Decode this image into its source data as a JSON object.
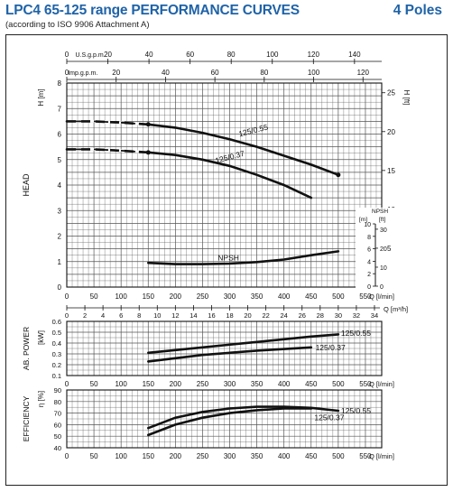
{
  "header": {
    "title": "LPC4 65-125 range PERFORMANCE CURVES",
    "subtitle": "(according to ISO 9906 Attachment A)",
    "poles": "4 Poles"
  },
  "colors": {
    "title": "#1f63a8",
    "grid": "#555555",
    "curve": "#111111"
  },
  "chart_data": [
    {
      "type": "line",
      "name": "head",
      "ylabel": "HEAD",
      "ylabel_unit_left": "H [m]",
      "ylabel_unit_right": "H [ft]",
      "xlim": [
        0,
        580
      ],
      "ylim": [
        0,
        8
      ],
      "yticks_left": [
        "0",
        "1",
        "2",
        "3",
        "4",
        "5",
        "6",
        "7",
        "8"
      ],
      "yticks_right": [
        "0",
        "5",
        "10",
        "15",
        "20",
        "25"
      ],
      "top_axis_usgpm": {
        "label": "U.S.g.p.m.",
        "ticks": [
          "0",
          "20",
          "40",
          "60",
          "80",
          "100",
          "120",
          "140"
        ]
      },
      "top_axis_impgpm": {
        "label": "Imp.g.p.m.",
        "ticks": [
          "0",
          "20",
          "40",
          "60",
          "80",
          "100",
          "120"
        ]
      },
      "series": [
        {
          "name": "125/0.55",
          "x": [
            0,
            50,
            100,
            150,
            200,
            250,
            300,
            350,
            400,
            450,
            500
          ],
          "y": [
            6.5,
            6.5,
            6.45,
            6.38,
            6.25,
            6.05,
            5.8,
            5.5,
            5.15,
            4.8,
            4.4
          ]
        },
        {
          "name": "125/0.37",
          "x": [
            0,
            50,
            100,
            150,
            200,
            250,
            300,
            350,
            400,
            450
          ],
          "y": [
            5.4,
            5.4,
            5.35,
            5.28,
            5.18,
            5.0,
            4.75,
            4.4,
            4.0,
            3.5
          ]
        },
        {
          "name": "NPSH",
          "x": [
            150,
            200,
            250,
            300,
            350,
            400,
            450,
            500
          ],
          "y": [
            0.95,
            0.9,
            0.9,
            0.92,
            0.98,
            1.08,
            1.25,
            1.4
          ]
        }
      ],
      "npsh_axis": {
        "label": "NPSH",
        "unit_m": "[m]",
        "unit_ft": "[ft]",
        "m_ticks": [
          "0",
          "2",
          "4",
          "6",
          "8",
          "10"
        ],
        "ft_ticks": [
          "0",
          "10",
          "20",
          "30"
        ],
        "right_ticks": [
          "5"
        ]
      }
    },
    {
      "type": "line",
      "name": "absorbed-power",
      "ylabel": "AB. POWER",
      "ylabel_unit": "[kW]",
      "xlim": [
        0,
        580
      ],
      "ylim": [
        0.1,
        0.6
      ],
      "yticks": [
        "0.1",
        "0.2",
        "0.3",
        "0.4",
        "0.5",
        "0.6"
      ],
      "series": [
        {
          "name": "125/0.55",
          "x": [
            150,
            250,
            350,
            450,
            500
          ],
          "y": [
            0.31,
            0.36,
            0.41,
            0.46,
            0.48
          ]
        },
        {
          "name": "125/0.37",
          "x": [
            150,
            250,
            350,
            450
          ],
          "y": [
            0.23,
            0.29,
            0.33,
            0.36
          ]
        }
      ]
    },
    {
      "type": "line",
      "name": "efficiency",
      "ylabel": "EFFICIENCY",
      "ylabel_unit": "η [%]",
      "xlim": [
        0,
        580
      ],
      "ylim": [
        40,
        90
      ],
      "yticks": [
        "40",
        "50",
        "60",
        "70",
        "80",
        "90"
      ],
      "series": [
        {
          "name": "125/0.55",
          "x": [
            150,
            200,
            250,
            300,
            350,
            400,
            450,
            500
          ],
          "y": [
            57,
            66,
            71,
            74,
            75.5,
            75.5,
            74.5,
            72
          ]
        },
        {
          "name": "125/0.37",
          "x": [
            150,
            200,
            250,
            300,
            350,
            400,
            450
          ],
          "y": [
            51,
            60,
            66,
            70,
            72.5,
            74,
            74
          ]
        }
      ]
    }
  ],
  "x_axis_lpm": {
    "label": "Q [l/min]",
    "ticks": [
      "0",
      "50",
      "100",
      "150",
      "200",
      "250",
      "300",
      "350",
      "400",
      "450",
      "500",
      "550"
    ]
  },
  "x_axis_m3h": {
    "label": "Q [m³/h]",
    "ticks": [
      "0",
      "2",
      "4",
      "6",
      "8",
      "10",
      "12",
      "14",
      "16",
      "18",
      "20",
      "22",
      "24",
      "26",
      "28",
      "30",
      "32",
      "34"
    ]
  }
}
